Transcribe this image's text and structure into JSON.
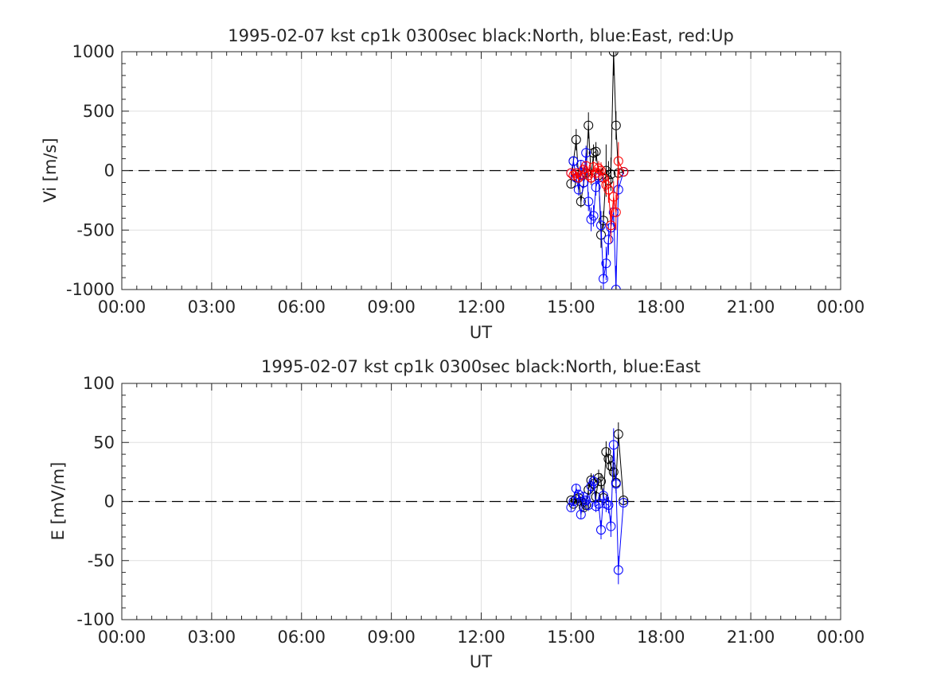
{
  "chart_data": [
    {
      "type": "line",
      "title": "1995-02-07 kst cp1k 0300sec black:North, blue:East, red:Up",
      "xlabel": "UT",
      "ylabel": "Vi [m/s]",
      "xlim": [
        0,
        24
      ],
      "ylim": [
        -1000,
        1000
      ],
      "xticks": [
        0,
        3,
        6,
        9,
        12,
        15,
        18,
        21,
        24
      ],
      "xtick_labels": [
        "00:00",
        "03:00",
        "06:00",
        "09:00",
        "12:00",
        "15:00",
        "18:00",
        "21:00",
        "00:00"
      ],
      "yticks": [
        -1000,
        -500,
        0,
        500,
        1000
      ],
      "ytick_labels": [
        "-1000",
        "-500",
        "0",
        "500",
        "1000"
      ],
      "grid": true,
      "zero_line": "dashed",
      "series": [
        {
          "name": "North",
          "color": "#000000",
          "x": [
            15.0,
            15.08,
            15.17,
            15.25,
            15.33,
            15.42,
            15.5,
            15.58,
            15.67,
            15.75,
            15.83,
            15.92,
            16.0,
            16.08,
            16.17,
            16.25,
            16.33,
            16.42,
            16.5,
            16.58,
            16.75
          ],
          "y": [
            -110,
            80,
            260,
            -60,
            -260,
            -100,
            -20,
            380,
            -60,
            150,
            160,
            -40,
            -540,
            -420,
            0,
            -80,
            -30,
            1000,
            380,
            -20,
            -10
          ],
          "err": [
            30,
            40,
            90,
            60,
            50,
            40,
            40,
            110,
            60,
            70,
            80,
            60,
            110,
            80,
            220,
            160,
            140,
            200,
            120,
            40,
            20
          ]
        },
        {
          "name": "East",
          "color": "#0000ff",
          "x": [
            15.0,
            15.08,
            15.17,
            15.25,
            15.33,
            15.42,
            15.5,
            15.58,
            15.67,
            15.75,
            15.83,
            15.92,
            16.0,
            16.08,
            16.17,
            16.25,
            16.33,
            16.42,
            16.5,
            16.58,
            16.75
          ],
          "y": [
            -20,
            80,
            -60,
            -160,
            50,
            -100,
            150,
            -260,
            -410,
            -380,
            -140,
            -60,
            -460,
            -910,
            -780,
            -580,
            -480,
            -350,
            -1000,
            -160,
            -10
          ],
          "err": [
            30,
            40,
            40,
            50,
            40,
            50,
            60,
            80,
            100,
            90,
            70,
            50,
            120,
            150,
            140,
            130,
            110,
            120,
            200,
            80,
            20
          ]
        },
        {
          "name": "Up",
          "color": "#ff0000",
          "x": [
            15.0,
            15.08,
            15.17,
            15.25,
            15.33,
            15.42,
            15.5,
            15.58,
            15.67,
            15.75,
            15.83,
            15.92,
            16.0,
            16.08,
            16.17,
            16.25,
            16.33,
            16.42,
            16.5,
            16.58,
            16.75
          ],
          "y": [
            -20,
            -40,
            -20,
            -60,
            -40,
            10,
            40,
            -40,
            -60,
            30,
            -20,
            20,
            0,
            -60,
            -120,
            -160,
            -460,
            -220,
            -350,
            80,
            -10
          ],
          "err": [
            20,
            30,
            30,
            40,
            40,
            40,
            40,
            50,
            50,
            50,
            50,
            60,
            70,
            80,
            90,
            110,
            150,
            130,
            150,
            160,
            20
          ]
        }
      ]
    },
    {
      "type": "line",
      "title": "1995-02-07 kst cp1k 0300sec black:North, blue:East",
      "xlabel": "UT",
      "ylabel": "E [mV/m]",
      "xlim": [
        0,
        24
      ],
      "ylim": [
        -100,
        100
      ],
      "xticks": [
        0,
        3,
        6,
        9,
        12,
        15,
        18,
        21,
        24
      ],
      "xtick_labels": [
        "00:00",
        "03:00",
        "06:00",
        "09:00",
        "12:00",
        "15:00",
        "18:00",
        "21:00",
        "00:00"
      ],
      "yticks": [
        -100,
        -50,
        0,
        50,
        100
      ],
      "ytick_labels": [
        "-100",
        "-50",
        "0",
        "50",
        "100"
      ],
      "grid": true,
      "zero_line": "dashed",
      "series": [
        {
          "name": "North",
          "color": "#000000",
          "x": [
            15.0,
            15.08,
            15.17,
            15.25,
            15.33,
            15.42,
            15.5,
            15.58,
            15.67,
            15.75,
            15.83,
            15.92,
            16.0,
            16.08,
            16.17,
            16.25,
            16.33,
            16.42,
            16.5,
            16.58,
            16.75
          ],
          "y": [
            1,
            -2,
            2,
            3,
            0,
            -5,
            -3,
            10,
            18,
            15,
            4,
            20,
            17,
            3,
            42,
            36,
            30,
            25,
            16,
            57,
            1
          ],
          "err": [
            2,
            2,
            3,
            3,
            3,
            3,
            4,
            5,
            6,
            6,
            5,
            7,
            7,
            6,
            9,
            9,
            8,
            8,
            7,
            10,
            2
          ]
        },
        {
          "name": "East",
          "color": "#0000ff",
          "x": [
            15.0,
            15.08,
            15.17,
            15.25,
            15.33,
            15.42,
            15.5,
            15.58,
            15.67,
            15.75,
            15.83,
            15.92,
            16.0,
            16.08,
            16.17,
            16.25,
            16.33,
            16.42,
            16.5,
            16.58,
            16.75
          ],
          "y": [
            -5,
            0,
            11,
            6,
            -11,
            4,
            1,
            -3,
            13,
            17,
            -4,
            -2,
            -24,
            5,
            -2,
            -3,
            -21,
            48,
            15,
            -58,
            -1
          ],
          "err": [
            3,
            3,
            4,
            4,
            4,
            4,
            4,
            5,
            6,
            6,
            5,
            6,
            8,
            6,
            7,
            7,
            9,
            14,
            8,
            12,
            2
          ]
        }
      ]
    }
  ]
}
